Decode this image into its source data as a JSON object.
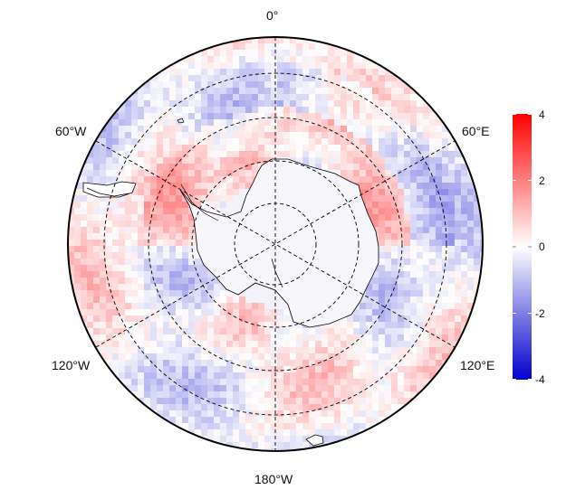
{
  "map": {
    "projection": "south polar stereographic",
    "longitude_labels": {
      "top": "0°",
      "upper_left": "60°W",
      "upper_right": "60°E",
      "lower_left": "120°W",
      "lower_right": "120°E",
      "bottom": "180°W"
    },
    "graticule": "dashed",
    "coastline_color": "#000000"
  },
  "colorbar": {
    "min": -4,
    "max": 4,
    "tick_labels": [
      "4",
      "2",
      "0",
      "-2",
      "-4"
    ],
    "colors": {
      "low": "#0000cc",
      "mid": "#ffffff",
      "high": "#ff0000"
    }
  }
}
